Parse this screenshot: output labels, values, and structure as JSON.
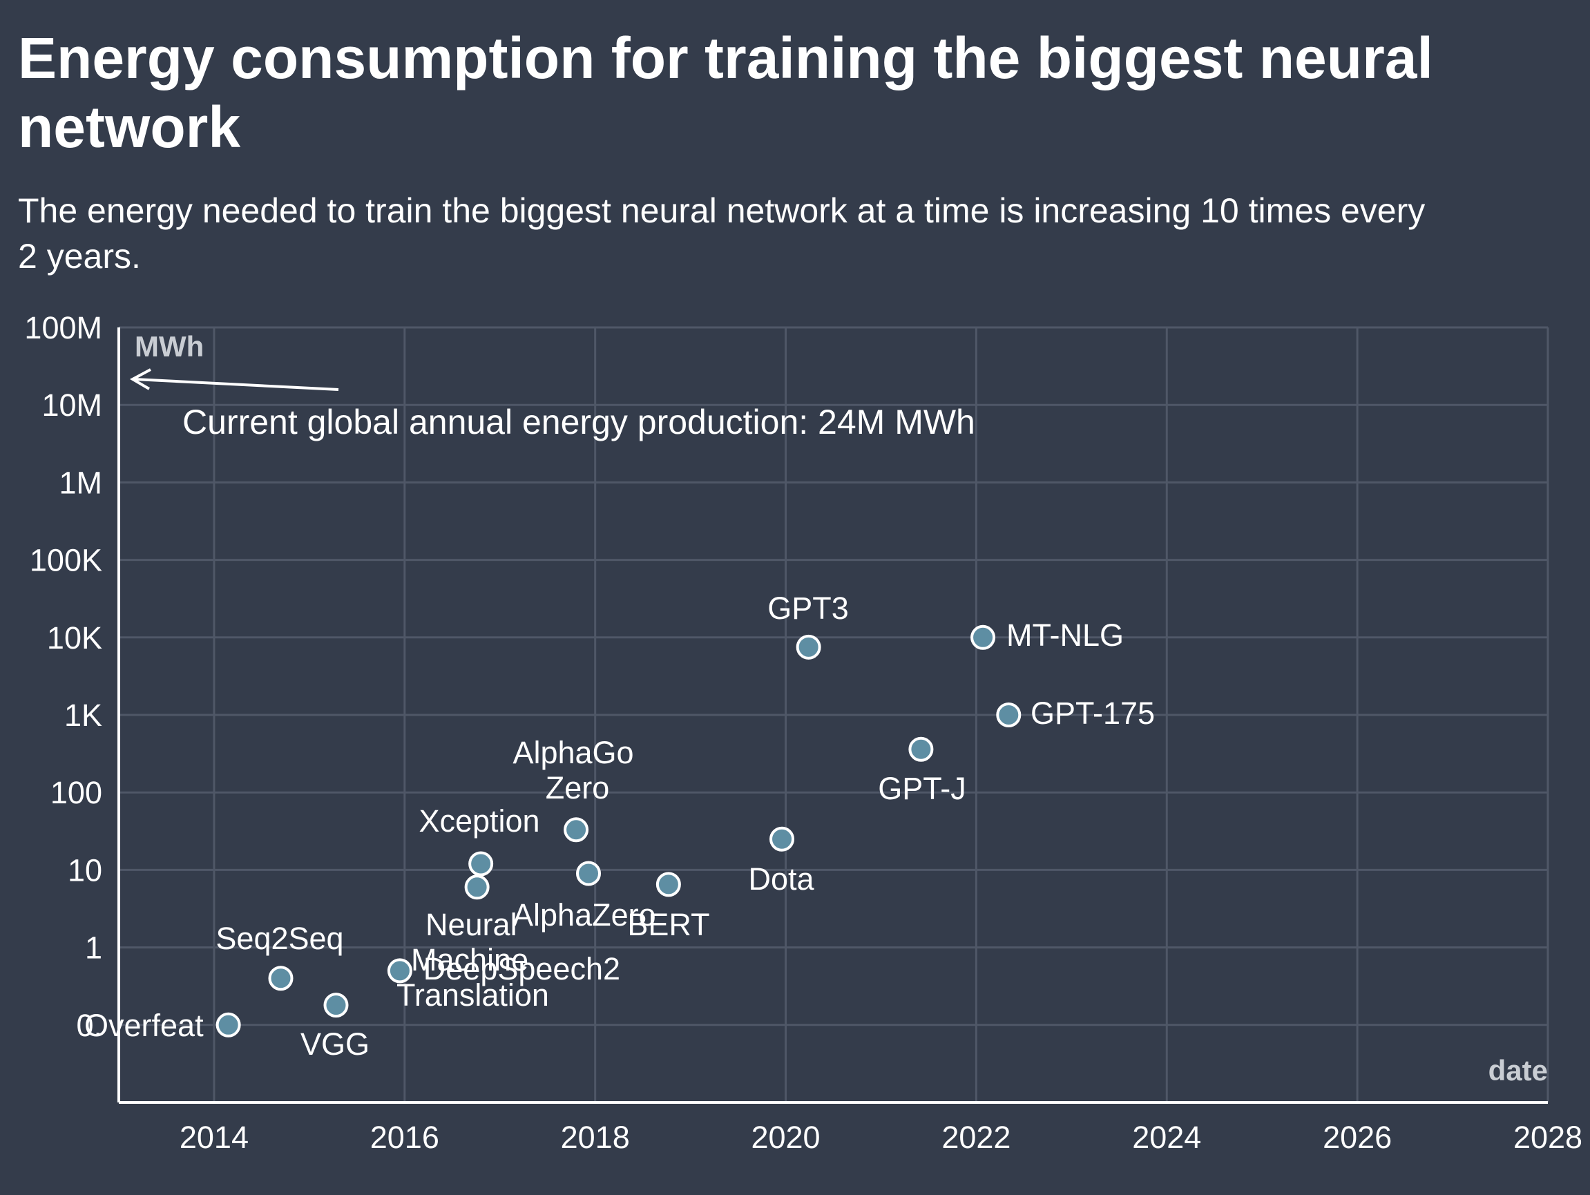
{
  "title_line1": "Energy consumption for training the biggest neural",
  "title_line2": "network",
  "subtitle_line1": "The energy needed to train the biggest neural network at a time is increasing 10 times every",
  "subtitle_line2": "2 years.",
  "colors": {
    "background": "#343c4b",
    "grid": "#4f5767",
    "axis": "#ffffff",
    "point_fill": "#5e8ea3",
    "point_stroke": "#ffffff",
    "text": "#ffffff",
    "axis_title": "#c9cdd3"
  },
  "chart_data": {
    "type": "scatter",
    "title": "Energy consumption for training the biggest neural network",
    "subtitle": "The energy needed to train the biggest neural network at a time is increasing 10 times every 2 years.",
    "xlabel": "date",
    "ylabel": "MWh",
    "y_scale": "log",
    "xlim": [
      2013,
      2028
    ],
    "ylim": [
      0.01,
      100000000
    ],
    "grid": true,
    "x_ticks": [
      2014,
      2016,
      2018,
      2020,
      2022,
      2024,
      2026,
      2028
    ],
    "y_ticks": [
      {
        "value": 0.1,
        "label": "0."
      },
      {
        "value": 1,
        "label": "1"
      },
      {
        "value": 10,
        "label": "10"
      },
      {
        "value": 100,
        "label": "100"
      },
      {
        "value": 1000,
        "label": "1K"
      },
      {
        "value": 10000,
        "label": "10K"
      },
      {
        "value": 100000,
        "label": "100K"
      },
      {
        "value": 1000000,
        "label": "1M"
      },
      {
        "value": 10000000,
        "label": "10M"
      },
      {
        "value": 100000000,
        "label": "100M"
      }
    ],
    "points": [
      {
        "label": "Overfeat",
        "date": "2014-02",
        "x": 2014.15,
        "y": 0.1
      },
      {
        "label": "Seq2Seq",
        "date": "2014-09",
        "x": 2014.7,
        "y": 0.4
      },
      {
        "label": "VGG",
        "date": "2015-04",
        "x": 2015.28,
        "y": 0.18
      },
      {
        "label": "DeepSpeech2",
        "date": "2015-12",
        "x": 2015.95,
        "y": 0.5
      },
      {
        "label": "Xception",
        "date": "2016-10",
        "x": 2016.8,
        "y": 12
      },
      {
        "label": "Neural Machine Translation",
        "date": "2016-09",
        "x": 2016.76,
        "y": 6
      },
      {
        "label": "AlphaGo Zero",
        "date": "2017-10",
        "x": 2017.8,
        "y": 33
      },
      {
        "label": "AlphaZero",
        "date": "2017-12",
        "x": 2017.93,
        "y": 9
      },
      {
        "label": "BERT",
        "date": "2018-10",
        "x": 2018.77,
        "y": 6.5
      },
      {
        "label": "Dota",
        "date": "2019-12",
        "x": 2019.96,
        "y": 25
      },
      {
        "label": "GPT3",
        "date": "2020-05",
        "x": 2020.24,
        "y": 7500
      },
      {
        "label": "GPT-J",
        "date": "2021-06",
        "x": 2021.42,
        "y": 360
      },
      {
        "label": "MT-NLG",
        "date": "2022-01",
        "x": 2022.07,
        "y": 10000
      },
      {
        "label": "GPT-175",
        "date": "2022-05",
        "x": 2022.34,
        "y": 1000
      }
    ],
    "annotation": {
      "text": "Current global annual energy production: 24M MWh",
      "arrow": "left"
    }
  }
}
